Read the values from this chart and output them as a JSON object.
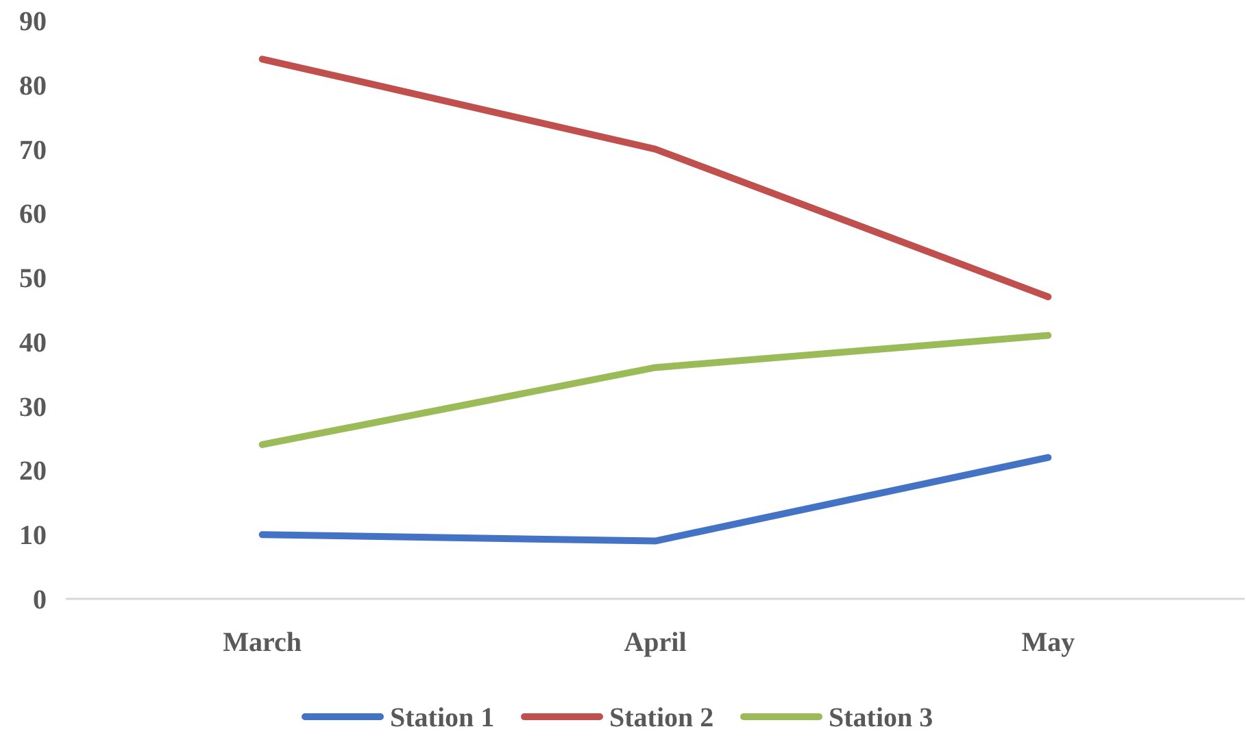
{
  "chart_data": {
    "type": "line",
    "categories": [
      "March",
      "April",
      "May"
    ],
    "series": [
      {
        "name": "Station 1",
        "color": "#4472c4",
        "values": [
          10,
          9,
          22
        ]
      },
      {
        "name": "Station 2",
        "color": "#c0504d",
        "values": [
          84,
          70,
          47
        ]
      },
      {
        "name": "Station 3",
        "color": "#9bbb59",
        "values": [
          24,
          36,
          41
        ]
      }
    ],
    "ylim": [
      0,
      90
    ],
    "yticks": [
      0,
      10,
      20,
      30,
      40,
      50,
      60,
      70,
      80,
      90
    ],
    "grid": false,
    "legend": "bottom",
    "marker": "none",
    "line_style": "solid"
  }
}
